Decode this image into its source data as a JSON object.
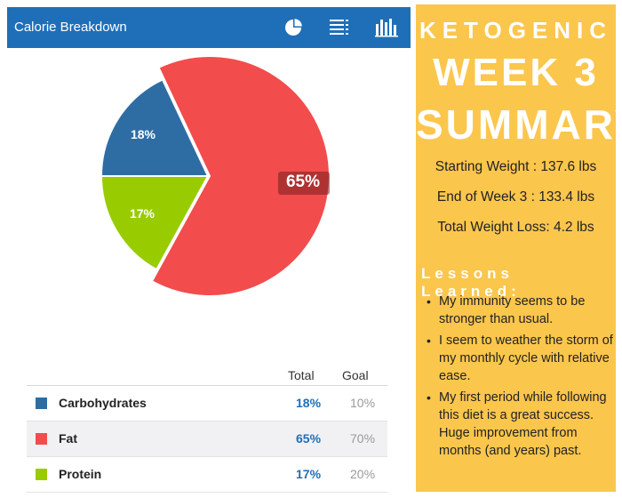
{
  "header": {
    "title": "Calorie Breakdown",
    "icons": [
      "pie-chart-icon",
      "list-icon",
      "bar-chart-icon"
    ]
  },
  "colors": {
    "header_bg": "#1f6fb8",
    "carbohydrates": "#2e6da4",
    "fat": "#f24c4c",
    "protein": "#99cc00",
    "summary_bg": "#fbc64c",
    "total_text": "#1f6fb8"
  },
  "chart_data": {
    "type": "pie",
    "slices": [
      {
        "name": "Carbohydrates",
        "value": 18,
        "label": "18%",
        "color": "#2e6da4"
      },
      {
        "name": "Fat",
        "value": 65,
        "label": "65%",
        "color": "#f24c4c"
      },
      {
        "name": "Protein",
        "value": 17,
        "label": "17%",
        "color": "#99cc00"
      }
    ]
  },
  "table": {
    "col_total": "Total",
    "col_goal": "Goal",
    "rows": [
      {
        "name": "Carbohydrates",
        "total": "18%",
        "goal": "10%"
      },
      {
        "name": "Fat",
        "total": "65%",
        "goal": "70%"
      },
      {
        "name": "Protein",
        "total": "17%",
        "goal": "20%"
      }
    ]
  },
  "summary": {
    "line1": "KETOGENIC",
    "line2": "WEEK 3",
    "line3": "SUMMARY",
    "starting_weight": "Starting Weight : 137.6 lbs",
    "end_weight": "End of Week 3 : 133.4 lbs",
    "total_loss": "Total Weight Loss: 4.2 lbs",
    "lessons_title": "Lessons Learned:",
    "lessons": [
      "My immunity seems to be stronger than usual.",
      "I seem to weather the storm of my monthly cycle with relative ease.",
      "My first period while following this diet is a great success.  Huge improvement from  months (and years) past."
    ]
  }
}
